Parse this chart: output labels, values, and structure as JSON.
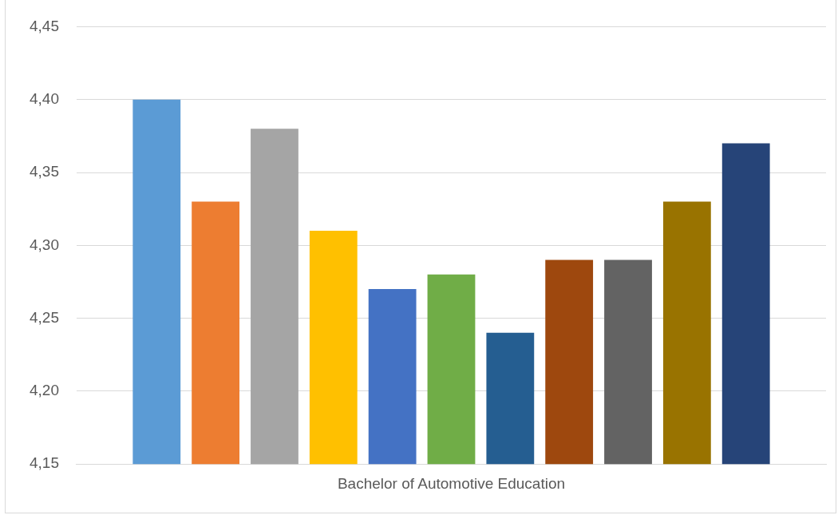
{
  "chart_data": {
    "type": "bar",
    "categories": [
      "Bachelor of Automotive Education"
    ],
    "series": [
      {
        "color": "#5b9bd5",
        "values": [
          4.4
        ]
      },
      {
        "color": "#ed7d31",
        "values": [
          4.33
        ]
      },
      {
        "color": "#a5a5a5",
        "values": [
          4.38
        ]
      },
      {
        "color": "#ffc000",
        "values": [
          4.31
        ]
      },
      {
        "color": "#4472c4",
        "values": [
          4.27
        ]
      },
      {
        "color": "#70ad47",
        "values": [
          4.28
        ]
      },
      {
        "color": "#255e91",
        "values": [
          4.24
        ]
      },
      {
        "color": "#9e480e",
        "values": [
          4.29
        ]
      },
      {
        "color": "#636363",
        "values": [
          4.29
        ]
      },
      {
        "color": "#997300",
        "values": [
          4.33
        ]
      },
      {
        "color": "#264478",
        "values": [
          4.37
        ]
      }
    ],
    "ylim": [
      4.15,
      4.45
    ],
    "yticks": [
      {
        "value": 4.15,
        "label": "4,15"
      },
      {
        "value": 4.2,
        "label": "4,20"
      },
      {
        "value": 4.25,
        "label": "4,25"
      },
      {
        "value": 4.3,
        "label": "4,30"
      },
      {
        "value": 4.35,
        "label": "4,35"
      },
      {
        "value": 4.4,
        "label": "4,40"
      },
      {
        "value": 4.45,
        "label": "4,45"
      }
    ],
    "grid": "y",
    "legend": false
  }
}
